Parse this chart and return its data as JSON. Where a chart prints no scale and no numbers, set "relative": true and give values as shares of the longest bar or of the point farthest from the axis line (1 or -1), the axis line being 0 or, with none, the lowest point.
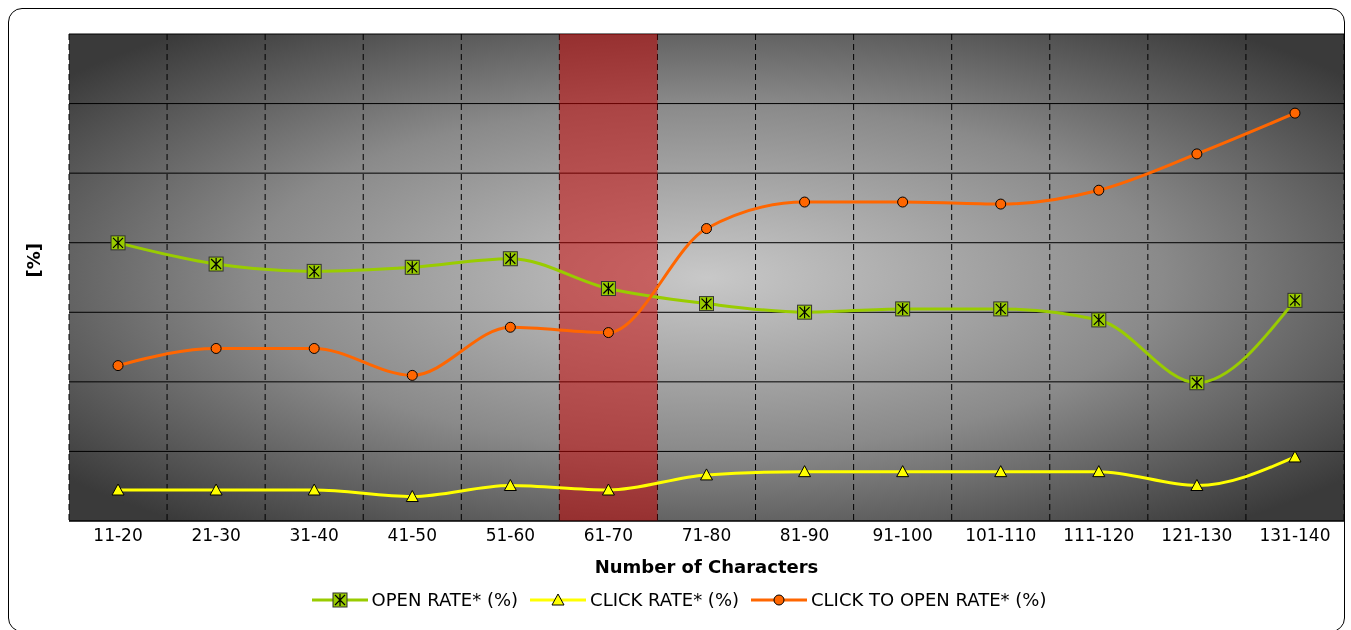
{
  "chart_data": {
    "type": "line",
    "relative": true,
    "xlabel": "Number of Characters",
    "ylabel": "[%]",
    "categories": [
      "11-20",
      "21-30",
      "31-40",
      "41-50",
      "51-60",
      "61-70",
      "71-80",
      "81-90",
      "91-100",
      "101-110",
      "111-120",
      "121-130",
      "131-140"
    ],
    "series": [
      {
        "name": "OPEN RATE* (%)",
        "color": "#99cc00",
        "marker": "square",
        "values": [
          0.682,
          0.63,
          0.612,
          0.622,
          0.643,
          0.57,
          0.533,
          0.512,
          0.52,
          0.52,
          0.493,
          0.339,
          0.541
        ]
      },
      {
        "name": "CLICK RATE* (%)",
        "color": "#ffff00",
        "marker": "triangle",
        "values": [
          0.076,
          0.076,
          0.076,
          0.06,
          0.087,
          0.076,
          0.113,
          0.121,
          0.121,
          0.121,
          0.121,
          0.087,
          0.157
        ]
      },
      {
        "name": "CLICK TO OPEN RATE* (%)",
        "color": "#ff6600",
        "marker": "circle",
        "values": [
          0.381,
          0.423,
          0.423,
          0.357,
          0.475,
          0.462,
          0.717,
          0.782,
          0.782,
          0.777,
          0.811,
          0.9,
          1
        ]
      }
    ],
    "bands": [
      {
        "axis": "x",
        "from": "61-70",
        "to": "61-70",
        "color": "#cc0000"
      }
    ],
    "grid": true,
    "legend": "bottom"
  }
}
